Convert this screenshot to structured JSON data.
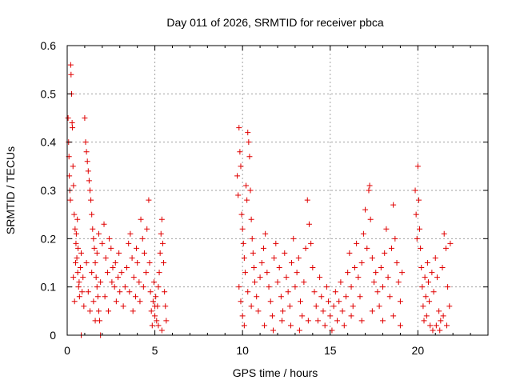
{
  "chart_data": {
    "type": "scatter",
    "title": "Day 011 of 2026, SRMTID for receiver pbca",
    "xlabel": "GPS time / hours",
    "ylabel": "SRMTID / TECUs",
    "xlim": [
      0,
      24
    ],
    "ylim": [
      0,
      0.6
    ],
    "x_ticks": [
      0,
      5,
      10,
      15,
      20
    ],
    "y_ticks": [
      0,
      0.1,
      0.2,
      0.3,
      0.4,
      0.5,
      0.6
    ],
    "x_tick_labels": [
      "0",
      "5",
      "10",
      "15",
      "20"
    ],
    "y_tick_labels": [
      "0",
      "0.1",
      "0.2",
      "0.3",
      "0.4",
      "0.5",
      "0.6"
    ],
    "grid": true,
    "marker": "plus",
    "color": "#e00000",
    "series": [
      {
        "name": "SRMTID",
        "points": [
          [
            0.05,
            0.45
          ],
          [
            0.08,
            0.4
          ],
          [
            0.1,
            0.37
          ],
          [
            0.12,
            0.33
          ],
          [
            0.15,
            0.3
          ],
          [
            0.18,
            0.28
          ],
          [
            0.2,
            0.56
          ],
          [
            0.22,
            0.54
          ],
          [
            0.25,
            0.5
          ],
          [
            0.28,
            0.44
          ],
          [
            0.3,
            0.43
          ],
          [
            0.33,
            0.35
          ],
          [
            0.36,
            0.31
          ],
          [
            0.4,
            0.25
          ],
          [
            0.45,
            0.22
          ],
          [
            0.5,
            0.19
          ],
          [
            0.55,
            0.16
          ],
          [
            0.6,
            0.13
          ],
          [
            0.65,
            0.1
          ],
          [
            0.7,
            0.08
          ],
          [
            0.35,
            0.12
          ],
          [
            0.42,
            0.07
          ],
          [
            0.48,
            0.15
          ],
          [
            0.52,
            0.21
          ],
          [
            0.58,
            0.24
          ],
          [
            0.62,
            0.18
          ],
          [
            0.68,
            0.11
          ],
          [
            0.75,
            0.14
          ],
          [
            0.8,
            0.17
          ],
          [
            0.85,
            0.09
          ],
          [
            0.9,
            0.12
          ],
          [
            0.95,
            0.06
          ],
          [
            1.0,
            0.45
          ],
          [
            1.05,
            0.4
          ],
          [
            1.1,
            0.38
          ],
          [
            1.15,
            0.36
          ],
          [
            1.2,
            0.34
          ],
          [
            1.25,
            0.32
          ],
          [
            1.3,
            0.3
          ],
          [
            1.35,
            0.28
          ],
          [
            1.4,
            0.25
          ],
          [
            1.45,
            0.22
          ],
          [
            1.5,
            0.2
          ],
          [
            1.55,
            0.18
          ],
          [
            1.6,
            0.15
          ],
          [
            1.65,
            0.12
          ],
          [
            1.7,
            0.1
          ],
          [
            1.75,
            0.08
          ],
          [
            1.8,
            0.05
          ],
          [
            1.85,
            0.03
          ],
          [
            1.1,
            0.15
          ],
          [
            1.2,
            0.09
          ],
          [
            1.3,
            0.05
          ],
          [
            1.4,
            0.13
          ],
          [
            1.5,
            0.07
          ],
          [
            1.6,
            0.03
          ],
          [
            1.7,
            0.17
          ],
          [
            1.8,
            0.21
          ],
          [
            1.9,
            0.11
          ],
          [
            2.0,
            0.19
          ],
          [
            2.1,
            0.23
          ],
          [
            2.2,
            0.16
          ],
          [
            2.3,
            0.13
          ],
          [
            2.4,
            0.2
          ],
          [
            2.5,
            0.18
          ],
          [
            2.6,
            0.14
          ],
          [
            2.7,
            0.1
          ],
          [
            2.8,
            0.07
          ],
          [
            2.9,
            0.12
          ],
          [
            3.0,
            0.09
          ],
          [
            2.15,
            0.08
          ],
          [
            2.35,
            0.05
          ],
          [
            2.55,
            0.11
          ],
          [
            2.75,
            0.15
          ],
          [
            2.95,
            0.17
          ],
          [
            3.1,
            0.13
          ],
          [
            3.2,
            0.06
          ],
          [
            3.3,
            0.1
          ],
          [
            3.4,
            0.14
          ],
          [
            3.5,
            0.19
          ],
          [
            3.6,
            0.21
          ],
          [
            3.7,
            0.16
          ],
          [
            3.8,
            0.12
          ],
          [
            3.9,
            0.08
          ],
          [
            4.0,
            0.15
          ],
          [
            4.1,
            0.11
          ],
          [
            4.2,
            0.24
          ],
          [
            4.3,
            0.2
          ],
          [
            4.4,
            0.17
          ],
          [
            4.5,
            0.13
          ],
          [
            3.55,
            0.09
          ],
          [
            3.75,
            0.05
          ],
          [
            3.95,
            0.18
          ],
          [
            4.15,
            0.07
          ],
          [
            4.35,
            0.1
          ],
          [
            4.55,
            0.22
          ],
          [
            4.65,
            0.28
          ],
          [
            4.7,
            0.15
          ],
          [
            4.75,
            0.09
          ],
          [
            4.8,
            0.05
          ],
          [
            4.85,
            0.02
          ],
          [
            4.9,
            0.07
          ],
          [
            4.95,
            0.11
          ],
          [
            5.0,
            0.04
          ],
          [
            5.05,
            0.08
          ],
          [
            5.1,
            0.03
          ],
          [
            5.15,
            0.06
          ],
          [
            5.2,
            0.1
          ],
          [
            5.25,
            0.13
          ],
          [
            5.3,
            0.17
          ],
          [
            5.35,
            0.21
          ],
          [
            5.4,
            0.24
          ],
          [
            5.45,
            0.19
          ],
          [
            5.5,
            0.15
          ],
          [
            5.55,
            0.09
          ],
          [
            5.6,
            0.06
          ],
          [
            5.65,
            0.03
          ],
          [
            5.2,
            0.02
          ],
          [
            5.4,
            0.01
          ],
          [
            5.0,
            0.06
          ],
          [
            0.8,
            0.0
          ],
          [
            1.9,
            0.0
          ],
          [
            0.8,
            0.0
          ],
          [
            9.7,
            0.33
          ],
          [
            9.75,
            0.29
          ],
          [
            9.8,
            0.43
          ],
          [
            9.85,
            0.38
          ],
          [
            9.9,
            0.35
          ],
          [
            9.95,
            0.25
          ],
          [
            10.0,
            0.22
          ],
          [
            10.05,
            0.19
          ],
          [
            10.1,
            0.16
          ],
          [
            10.15,
            0.13
          ],
          [
            10.2,
            0.31
          ],
          [
            10.25,
            0.28
          ],
          [
            10.3,
            0.42
          ],
          [
            10.35,
            0.4
          ],
          [
            10.4,
            0.37
          ],
          [
            10.45,
            0.3
          ],
          [
            10.5,
            0.24
          ],
          [
            10.55,
            0.2
          ],
          [
            10.6,
            0.17
          ],
          [
            10.65,
            0.14
          ],
          [
            9.8,
            0.1
          ],
          [
            9.9,
            0.07
          ],
          [
            10.0,
            0.04
          ],
          [
            10.1,
            0.02
          ],
          [
            10.3,
            0.09
          ],
          [
            10.5,
            0.06
          ],
          [
            10.7,
            0.11
          ],
          [
            10.8,
            0.08
          ],
          [
            10.9,
            0.05
          ],
          [
            11.0,
            0.12
          ],
          [
            11.1,
            0.15
          ],
          [
            11.2,
            0.18
          ],
          [
            11.3,
            0.21
          ],
          [
            11.4,
            0.13
          ],
          [
            11.5,
            0.1
          ],
          [
            11.6,
            0.07
          ],
          [
            11.7,
            0.04
          ],
          [
            11.8,
            0.16
          ],
          [
            11.9,
            0.19
          ],
          [
            12.0,
            0.11
          ],
          [
            12.1,
            0.14
          ],
          [
            12.2,
            0.08
          ],
          [
            12.3,
            0.05
          ],
          [
            12.4,
            0.17
          ],
          [
            12.5,
            0.12
          ],
          [
            12.6,
            0.09
          ],
          [
            12.7,
            0.06
          ],
          [
            12.8,
            0.15
          ],
          [
            12.9,
            0.2
          ],
          [
            13.0,
            0.1
          ],
          [
            13.1,
            0.13
          ],
          [
            13.2,
            0.16
          ],
          [
            13.3,
            0.07
          ],
          [
            13.4,
            0.04
          ],
          [
            13.5,
            0.11
          ],
          [
            13.6,
            0.18
          ],
          [
            13.7,
            0.28
          ],
          [
            13.8,
            0.23
          ],
          [
            13.9,
            0.19
          ],
          [
            14.0,
            0.14
          ],
          [
            11.25,
            0.02
          ],
          [
            11.75,
            0.01
          ],
          [
            12.25,
            0.03
          ],
          [
            12.75,
            0.02
          ],
          [
            13.25,
            0.01
          ],
          [
            13.75,
            0.03
          ],
          [
            14.1,
            0.09
          ],
          [
            14.2,
            0.06
          ],
          [
            14.3,
            0.03
          ],
          [
            14.4,
            0.12
          ],
          [
            14.5,
            0.08
          ],
          [
            14.6,
            0.05
          ],
          [
            14.7,
            0.02
          ],
          [
            14.8,
            0.1
          ],
          [
            14.9,
            0.07
          ],
          [
            15.0,
            0.04
          ],
          [
            15.1,
            0.01
          ],
          [
            15.2,
            0.06
          ],
          [
            15.3,
            0.09
          ],
          [
            15.4,
            0.03
          ],
          [
            15.5,
            0.07
          ],
          [
            15.6,
            0.11
          ],
          [
            15.7,
            0.05
          ],
          [
            15.8,
            0.02
          ],
          [
            15.9,
            0.08
          ],
          [
            16.0,
            0.13
          ],
          [
            16.1,
            0.17
          ],
          [
            16.2,
            0.1
          ],
          [
            16.3,
            0.06
          ],
          [
            16.4,
            0.14
          ],
          [
            16.5,
            0.19
          ],
          [
            16.6,
            0.12
          ],
          [
            16.7,
            0.08
          ],
          [
            16.8,
            0.15
          ],
          [
            16.9,
            0.21
          ],
          [
            17.0,
            0.26
          ],
          [
            17.1,
            0.18
          ],
          [
            17.2,
            0.3
          ],
          [
            17.25,
            0.31
          ],
          [
            17.3,
            0.24
          ],
          [
            17.4,
            0.16
          ],
          [
            17.5,
            0.11
          ],
          [
            17.6,
            0.13
          ],
          [
            17.7,
            0.09
          ],
          [
            17.8,
            0.06
          ],
          [
            17.9,
            0.14
          ],
          [
            18.0,
            0.1
          ],
          [
            18.1,
            0.17
          ],
          [
            18.2,
            0.22
          ],
          [
            18.3,
            0.12
          ],
          [
            18.4,
            0.08
          ],
          [
            18.5,
            0.18
          ],
          [
            18.6,
            0.27
          ],
          [
            18.7,
            0.2
          ],
          [
            18.8,
            0.15
          ],
          [
            18.9,
            0.11
          ],
          [
            19.0,
            0.07
          ],
          [
            19.1,
            0.13
          ],
          [
            16.2,
            0.04
          ],
          [
            16.8,
            0.03
          ],
          [
            17.4,
            0.05
          ],
          [
            18.0,
            0.03
          ],
          [
            18.6,
            0.04
          ],
          [
            19.0,
            0.02
          ],
          [
            19.85,
            0.3
          ],
          [
            19.9,
            0.25
          ],
          [
            19.95,
            0.2
          ],
          [
            20.0,
            0.35
          ],
          [
            20.05,
            0.28
          ],
          [
            20.1,
            0.22
          ],
          [
            20.15,
            0.18
          ],
          [
            20.2,
            0.14
          ],
          [
            20.25,
            0.1
          ],
          [
            20.3,
            0.06
          ],
          [
            20.35,
            0.03
          ],
          [
            20.4,
            0.12
          ],
          [
            20.45,
            0.08
          ],
          [
            20.5,
            0.04
          ],
          [
            20.55,
            0.15
          ],
          [
            20.6,
            0.11
          ],
          [
            20.65,
            0.07
          ],
          [
            20.7,
            0.02
          ],
          [
            20.8,
            0.13
          ],
          [
            20.9,
            0.09
          ],
          [
            21.0,
            0.16
          ],
          [
            21.1,
            0.12
          ],
          [
            21.2,
            0.05
          ],
          [
            21.3,
            0.03
          ],
          [
            21.4,
            0.14
          ],
          [
            21.5,
            0.21
          ],
          [
            21.6,
            0.18
          ],
          [
            21.7,
            0.1
          ],
          [
            21.8,
            0.06
          ],
          [
            21.85,
            0.19
          ],
          [
            20.85,
            0.01
          ],
          [
            21.05,
            0.02
          ],
          [
            21.25,
            0.01
          ],
          [
            21.45,
            0.04
          ],
          [
            21.65,
            0.02
          ]
        ]
      }
    ]
  }
}
